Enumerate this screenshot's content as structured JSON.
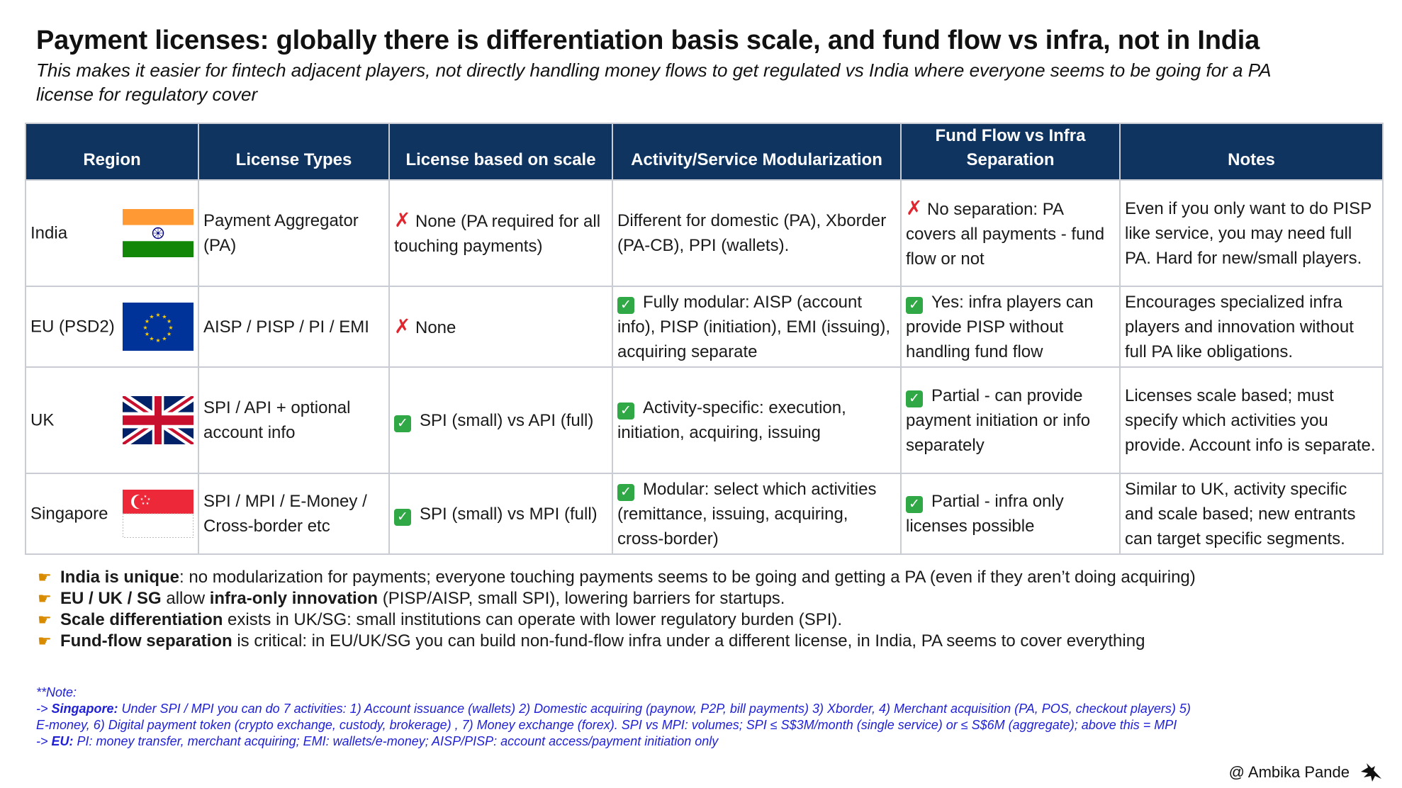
{
  "title": "Payment licenses: globally there is differentiation basis scale, and fund flow vs infra, not in India",
  "subtitle": {
    "line1": "This makes it easier for fintech adjacent players, not directly handling money flows to get regulated vs India where everyone seems to be going for a PA",
    "line2": "license for regulatory cover"
  },
  "table": {
    "headers": {
      "region": "Region",
      "license_types": "License Types",
      "scale": "License based on scale",
      "modularization": "Activity/Service Modularization",
      "separation_1": "Fund Flow vs Infra",
      "separation_2": "Separation",
      "notes": "Notes"
    },
    "rows": [
      {
        "region": "India",
        "flag": "india-flag",
        "license_types": "Payment Aggregator (PA)",
        "scale_mark": "cross",
        "scale": "None (PA required for all touching payments)",
        "modularization_mark": "",
        "modularization": "Different for domestic (PA), Xborder (PA-CB), PPI (wallets).",
        "separation_mark": "cross",
        "separation": "No separation: PA covers all payments - fund flow or not",
        "notes": "Even if you only want to do PISP like service, you may need full PA. Hard for new/small players."
      },
      {
        "region": "EU (PSD2)",
        "flag": "eu-flag",
        "license_types": "AISP / PISP / PI  / EMI",
        "scale_mark": "cross",
        "scale": "None",
        "modularization_mark": "check",
        "modularization": "Fully modular: AISP (account info), PISP (initiation), EMI (issuing), acquiring separate",
        "separation_mark": "check",
        "separation": "Yes: infra players can provide PISP without handling fund flow",
        "notes": "Encourages specialized infra players and innovation without full PA like obligations."
      },
      {
        "region": "UK",
        "flag": "uk-flag",
        "license_types": "SPI / API + optional account info",
        "scale_mark": "check",
        "scale": "SPI (small) vs API (full)",
        "modularization_mark": "check",
        "modularization": "Activity-specific: execution, initiation, acquiring, issuing",
        "separation_mark": "check",
        "separation": "Partial -  can provide payment initiation or info separately",
        "notes": "Licenses scale based; must specify which activities you provide. Account info is separate."
      },
      {
        "region": "Singapore",
        "flag": "singapore-flag",
        "license_types": "SPI / MPI / E-Money / Cross-border etc",
        "scale_mark": "check",
        "scale": "SPI (small) vs MPI (full)",
        "modularization_mark": "check",
        "modularization": "Modular: select which activities (remittance, issuing, acquiring, cross-border)",
        "separation_mark": "check",
        "separation": "Partial -  infra only licenses possible",
        "notes": "Similar to UK, activity specific and scale based; new entrants can target specific segments."
      }
    ]
  },
  "bullets": [
    {
      "bold": "India is unique",
      "rest": ": no modularization for payments; everyone touching payments seems to be going and getting a PA (even if they aren’t doing acquiring)"
    },
    {
      "bold": "EU / UK / SG",
      "mid": " allow ",
      "bold2": "infra-only innovation",
      "rest": " (PISP/AISP, small SPI), lowering barriers for startups."
    },
    {
      "bold": "Scale differentiation",
      "rest": " exists in UK/SG: small institutions can operate with lower regulatory burden (SPI)."
    },
    {
      "bold": "Fund-flow separation",
      "rest": " is critical:  in EU/UK/SG you can build non-fund-flow infra under a different license, in India, PA seems to cover everything"
    }
  ],
  "notes": {
    "heading": "**Note:",
    "sg_prefix": "-> ",
    "sg_label": "Singapore:",
    "sg_line1": " Under SPI / MPI you can do 7 activities: 1) Account issuance (wallets) 2) Domestic acquiring (paynow, P2P, bill payments) 3) Xborder,  4) Merchant acquisition (PA, POS, checkout players) 5)",
    "sg_line2": "E-money, 6) Digital payment token (crypto exchange, custody, brokerage) , 7) Money exchange (forex). SPI vs MPI: volumes;  SPI ≤ S$3M/month (single service) or ≤ S$6M (aggregate); above this = MPI",
    "eu_prefix": "-> ",
    "eu_label": "EU:",
    "eu_line": " PI: money transfer, merchant acquiring; EMI: wallets/e-money;  AISP/PISP: account access/payment initiation only"
  },
  "credit": "@ Ambika Pande",
  "colors": {
    "header_bg": "#0f3460",
    "cross": "#e0272f",
    "check": "#31a846",
    "note_blue": "#1f1fd6"
  }
}
